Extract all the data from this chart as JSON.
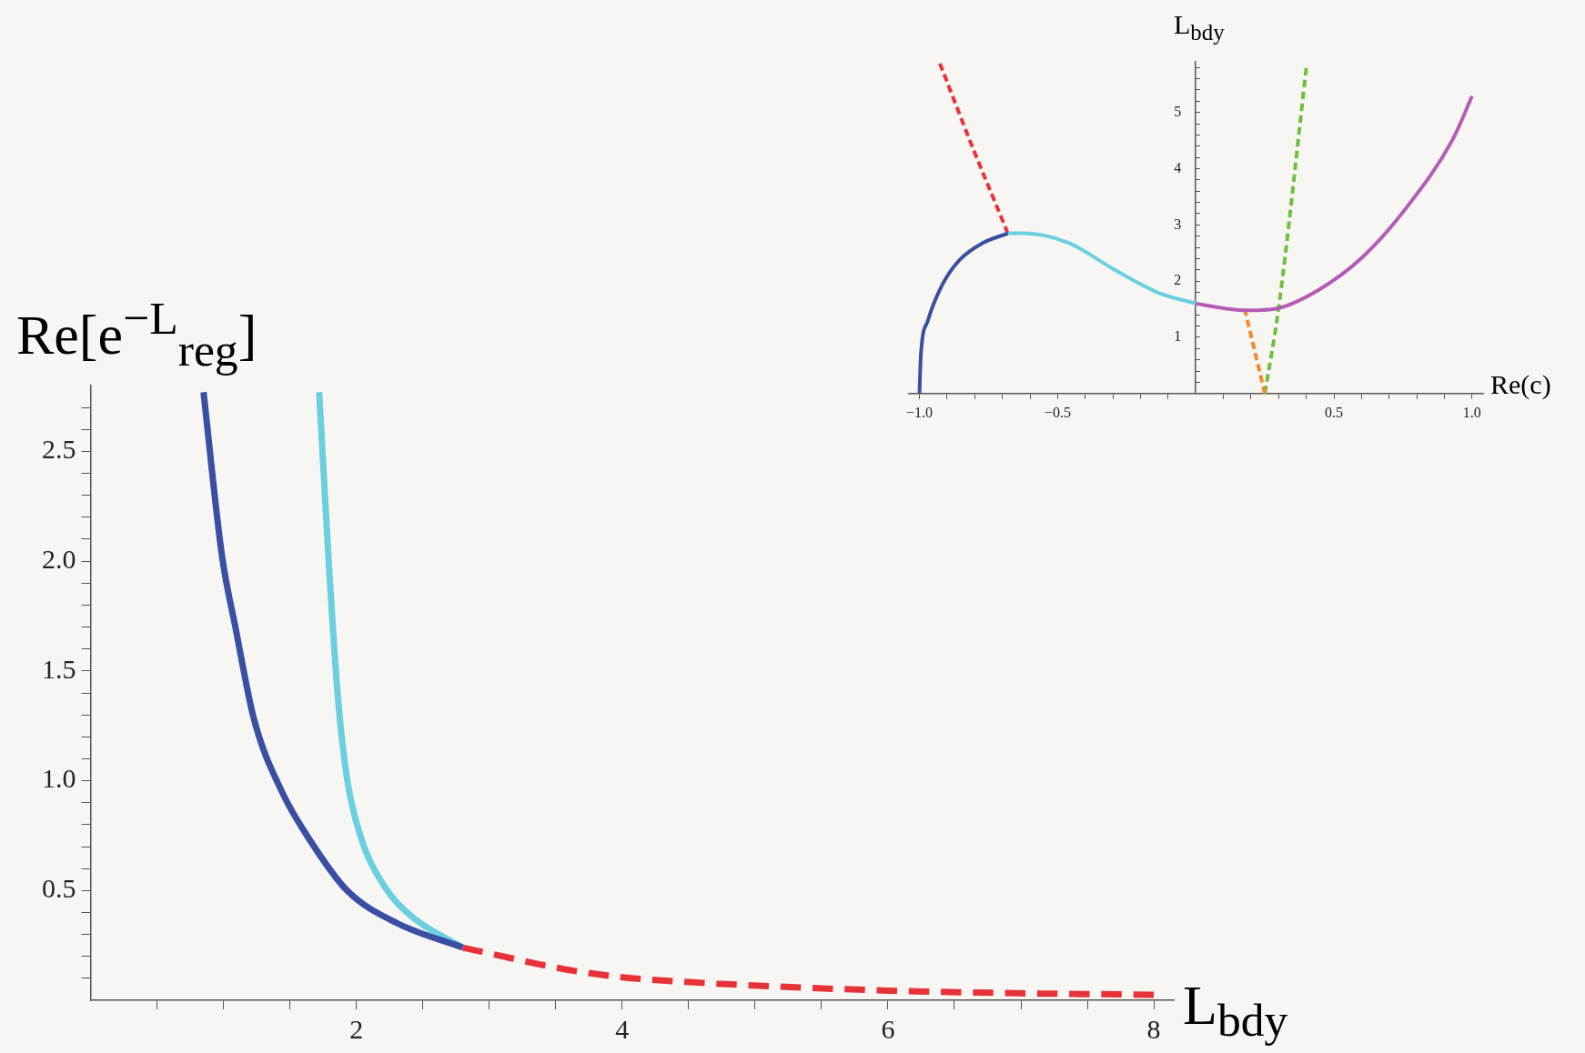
{
  "chart_data": [
    {
      "type": "line",
      "xlabel": "L$_{bdy}$",
      "ylabel": "Re[e$^{−L}$$_{reg}$]",
      "xlim": [
        0,
        8.15
      ],
      "ylim": [
        0,
        2.8
      ],
      "xticks": [
        {
          "value": 0.5,
          "label": null
        },
        {
          "value": 1,
          "label": null
        },
        {
          "value": 1.5,
          "label": null
        },
        2,
        {
          "value": 2.5,
          "label": null
        },
        {
          "value": 3,
          "label": null
        },
        {
          "value": 3.5,
          "label": null
        },
        4,
        {
          "value": 4.5,
          "label": null
        },
        {
          "value": 5,
          "label": null
        },
        {
          "value": 5.5,
          "label": null
        },
        6,
        {
          "value": 6.5,
          "label": null
        },
        {
          "value": 7,
          "label": null
        },
        {
          "value": 7.5,
          "label": null
        },
        8
      ],
      "yticks": [
        {
          "value": 0.1,
          "label": null
        },
        {
          "value": 0.2,
          "label": null
        },
        {
          "value": 0.3,
          "label": null
        },
        {
          "value": 0.4,
          "label": null
        },
        0.5,
        {
          "value": 0.6,
          "label": null
        },
        {
          "value": 0.7,
          "label": null
        },
        {
          "value": 0.8,
          "label": null
        },
        {
          "value": 0.9,
          "label": null
        },
        {
          "value": 1,
          "label": "1.0"
        },
        {
          "value": 1.1,
          "label": null
        },
        {
          "value": 1.2,
          "label": null
        },
        {
          "value": 1.3,
          "label": null
        },
        {
          "value": 1.4,
          "label": null
        },
        1.5,
        {
          "value": 1.6,
          "label": null
        },
        {
          "value": 1.7,
          "label": null
        },
        {
          "value": 1.8,
          "label": null
        },
        {
          "value": 1.9,
          "label": null
        },
        {
          "value": 2,
          "label": "2.0"
        },
        {
          "value": 2.1,
          "label": null
        },
        {
          "value": 2.2,
          "label": null
        },
        {
          "value": 2.3,
          "label": null
        },
        {
          "value": 2.4,
          "label": null
        },
        2.5,
        {
          "value": 2.6,
          "label": null
        },
        {
          "value": 2.7,
          "label": null
        }
      ],
      "grid": false,
      "legend": false,
      "marker": "none",
      "series": [
        {
          "color": "#3a4fa3",
          "line_style": "solid",
          "x": [
            0.85,
            0.99,
            1.09,
            1.23,
            1.44,
            1.65,
            1.93,
            2.31,
            2.8
          ],
          "values": [
            2.77,
            2.02,
            1.7,
            1.28,
            0.95,
            0.73,
            0.5,
            0.35,
            0.24
          ]
        },
        {
          "color": "#6ccfe0",
          "line_style": "solid",
          "x": [
            1.72,
            1.79,
            1.86,
            1.93,
            2.03,
            2.21,
            2.42,
            2.8
          ],
          "values": [
            2.77,
            2.02,
            1.39,
            1.01,
            0.75,
            0.52,
            0.38,
            0.24
          ]
        },
        {
          "color": "#e8323a",
          "line_style": "dashed",
          "x": [
            2.8,
            3.58,
            4,
            4.71,
            5.47,
            6,
            6.98,
            8
          ],
          "values": [
            0.24,
            0.14,
            0.105,
            0.076,
            0.055,
            0.044,
            0.032,
            0.025
          ]
        }
      ]
    },
    {
      "type": "line",
      "xlabel": "Re(c)",
      "ylabel": "L$_{bdy}$",
      "xlim": [
        -1.04,
        1.04
      ],
      "ylim": [
        0,
        5.9
      ],
      "xticks": [
        {
          "value": -1,
          "label": "−1.0"
        },
        {
          "value": -0.9,
          "label": null
        },
        {
          "value": -0.8,
          "label": null
        },
        {
          "value": -0.7,
          "label": null
        },
        {
          "value": -0.6,
          "label": null
        },
        {
          "value": -0.5,
          "label": "−0.5"
        },
        {
          "value": -0.4,
          "label": null
        },
        {
          "value": -0.3,
          "label": null
        },
        {
          "value": -0.2,
          "label": null
        },
        {
          "value": -0.1,
          "label": null
        },
        {
          "value": 0.1,
          "label": null
        },
        {
          "value": 0.2,
          "label": null
        },
        {
          "value": 0.3,
          "label": null
        },
        {
          "value": 0.4,
          "label": null
        },
        0.5,
        {
          "value": 0.6,
          "label": null
        },
        {
          "value": 0.7,
          "label": null
        },
        {
          "value": 0.8,
          "label": null
        },
        {
          "value": 0.9,
          "label": null
        },
        {
          "value": 1,
          "label": "1.0"
        }
      ],
      "yticks": [
        {
          "value": 0.2,
          "label": null
        },
        {
          "value": 0.4,
          "label": null
        },
        {
          "value": 0.6,
          "label": null
        },
        {
          "value": 0.8,
          "label": null
        },
        1,
        {
          "value": 1.2,
          "label": null
        },
        {
          "value": 1.4,
          "label": null
        },
        {
          "value": 1.6,
          "label": null
        },
        {
          "value": 1.8,
          "label": null
        },
        2,
        {
          "value": 2.2,
          "label": null
        },
        {
          "value": 2.4,
          "label": null
        },
        {
          "value": 2.6,
          "label": null
        },
        {
          "value": 2.8,
          "label": null
        },
        3,
        {
          "value": 3.2,
          "label": null
        },
        {
          "value": 3.4,
          "label": null
        },
        {
          "value": 3.6,
          "label": null
        },
        {
          "value": 3.8,
          "label": null
        },
        4,
        {
          "value": 4.2,
          "label": null
        },
        {
          "value": 4.4,
          "label": null
        },
        {
          "value": 4.6,
          "label": null
        },
        {
          "value": 4.8,
          "label": null
        },
        5,
        {
          "value": 5.2,
          "label": null
        },
        {
          "value": 5.4,
          "label": null
        },
        {
          "value": 5.6,
          "label": null
        },
        {
          "value": 5.8,
          "label": null
        }
      ],
      "grid": false,
      "legend": false,
      "marker": "none",
      "series": [
        {
          "color": "#3a4fa3",
          "line_style": "solid",
          "x": [
            -1,
            -0.995,
            -0.97,
            -0.92,
            -0.856,
            -0.77,
            -0.68
          ],
          "values": [
            0,
            0.68,
            1.29,
            1.91,
            2.37,
            2.68,
            2.85
          ]
        },
        {
          "color": "#6ccfe0",
          "line_style": "solid",
          "x": [
            -0.68,
            -0.625,
            -0.46,
            -0.3,
            -0.134,
            0
          ],
          "values": [
            2.85,
            2.85,
            2.68,
            2.22,
            1.79,
            1.6
          ]
        },
        {
          "color": "#b55bb5",
          "line_style": "solid",
          "x": [
            0,
            0.11,
            0.19,
            0.29,
            0.44,
            0.6,
            0.76,
            0.93,
            1
          ],
          "values": [
            1.6,
            1.51,
            1.48,
            1.51,
            1.83,
            2.41,
            3.29,
            4.52,
            5.29
          ]
        },
        {
          "color": "#e8323a",
          "line_style": "dashed",
          "x": [
            -0.926,
            -0.807,
            -0.68
          ],
          "values": [
            5.87,
            4.37,
            2.85
          ]
        },
        {
          "color": "#f08a30",
          "line_style": "dashed",
          "x": [
            0.177,
            0.25
          ],
          "values": [
            1.51,
            0
          ]
        },
        {
          "color": "#6cc040",
          "line_style": "dashed",
          "x": [
            0.25,
            0.3,
            0.4
          ],
          "values": [
            0,
            1.52,
            5.79
          ]
        }
      ]
    }
  ]
}
